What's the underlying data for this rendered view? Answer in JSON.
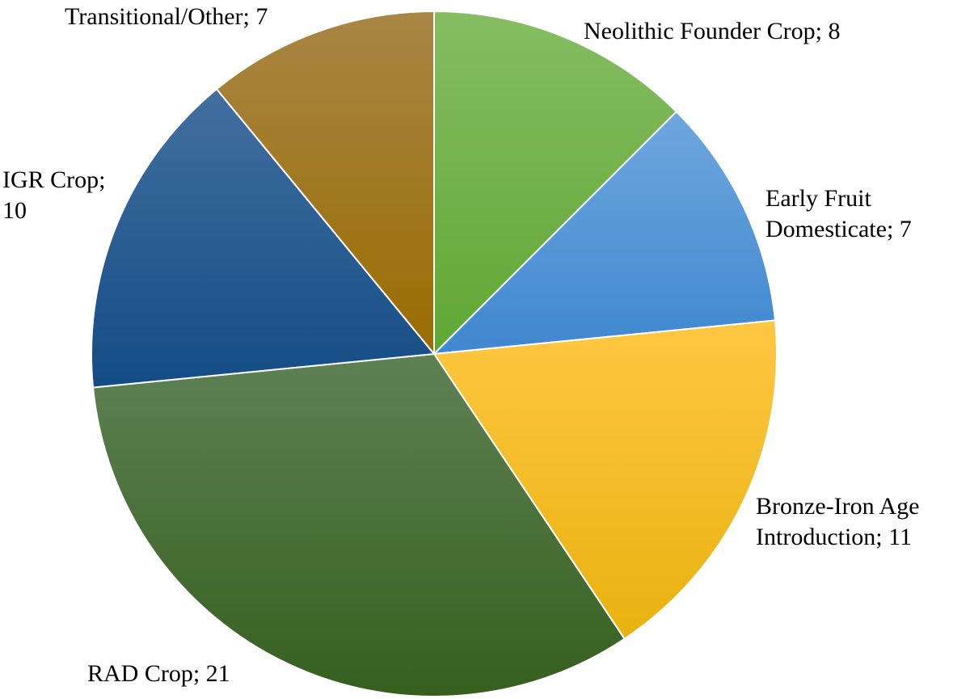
{
  "chart_data": {
    "type": "pie",
    "title": "",
    "start_angle_deg": 0,
    "direction": "clockwise",
    "slices": [
      {
        "label": "Neolithic Founder Crop",
        "value": 8,
        "label_text": [
          "Neolithic Founder Crop; 8"
        ],
        "color_light": "#86bd63",
        "color_dark": "#5fa733"
      },
      {
        "label": "Early Fruit Domesticate",
        "value": 7,
        "label_text": [
          "Early Fruit",
          "Domesticate; 7"
        ],
        "color_light": "#6fa7de",
        "color_dark": "#3f87cf"
      },
      {
        "label": "Bronze-Iron Age Introduction",
        "value": 11,
        "label_text": [
          "Bronze-Iron Age",
          "Introduction; 11"
        ],
        "color_light": "#ffc742",
        "color_dark": "#e8b210"
      },
      {
        "label": "RAD Crop",
        "value": 21,
        "label_text": [
          "RAD Crop; 21"
        ],
        "color_light": "#5e8154",
        "color_dark": "#365f1e"
      },
      {
        "label": "IGR Crop",
        "value": 10,
        "label_text": [
          "IGR Crop;",
          "10"
        ],
        "color_light": "#426f9f",
        "color_dark": "#134c85"
      },
      {
        "label": "Transitional/Other",
        "value": 7,
        "label_text": [
          "Transitional/Other; 7"
        ],
        "color_light": "#a88645",
        "color_dark": "#9a6c00"
      }
    ]
  }
}
